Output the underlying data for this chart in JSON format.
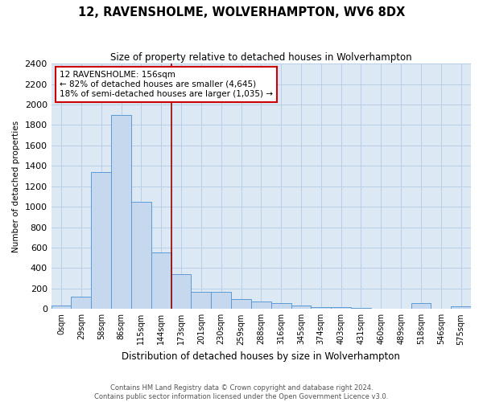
{
  "title": "12, RAVENSHOLME, WOLVERHAMPTON, WV6 8DX",
  "subtitle": "Size of property relative to detached houses in Wolverhampton",
  "xlabel": "Distribution of detached houses by size in Wolverhampton",
  "ylabel": "Number of detached properties",
  "bin_labels": [
    "0sqm",
    "29sqm",
    "58sqm",
    "86sqm",
    "115sqm",
    "144sqm",
    "173sqm",
    "201sqm",
    "230sqm",
    "259sqm",
    "288sqm",
    "316sqm",
    "345sqm",
    "374sqm",
    "403sqm",
    "431sqm",
    "460sqm",
    "489sqm",
    "518sqm",
    "546sqm",
    "575sqm"
  ],
  "bar_heights": [
    30,
    120,
    1340,
    1900,
    1050,
    550,
    340,
    165,
    165,
    100,
    75,
    55,
    30,
    20,
    15,
    8,
    5,
    3,
    60,
    3,
    25
  ],
  "bar_color": "#c5d8ee",
  "bar_edge_color": "#5b9bd5",
  "plot_bg_color": "#dce9f5",
  "ylim": [
    0,
    2400
  ],
  "yticks": [
    0,
    200,
    400,
    600,
    800,
    1000,
    1200,
    1400,
    1600,
    1800,
    2000,
    2200,
    2400
  ],
  "red_line_x": 6.0,
  "annotation_text": "12 RAVENSHOLME: 156sqm\n← 82% of detached houses are smaller (4,645)\n18% of semi-detached houses are larger (1,035) →",
  "annotation_box_color": "#ffffff",
  "annotation_box_edge": "#cc0000",
  "red_line_color": "#990000",
  "footer_text": "Contains HM Land Registry data © Crown copyright and database right 2024.\nContains public sector information licensed under the Open Government Licence v3.0.",
  "background_color": "#ffffff",
  "grid_color": "#b8cfe8"
}
